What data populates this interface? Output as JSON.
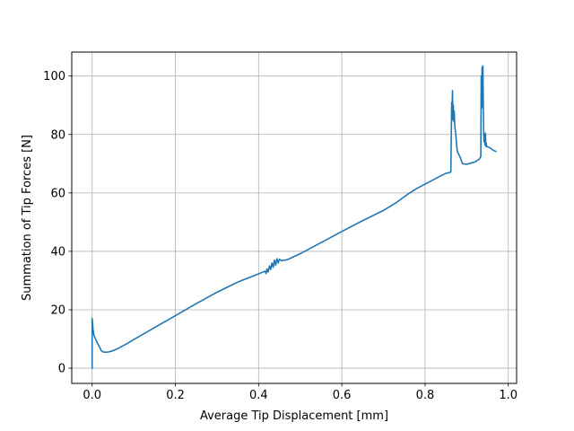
{
  "chart_data": {
    "type": "line",
    "title": "",
    "xlabel": "Average Tip Displacement [mm]",
    "ylabel": "Summation of Tip Forces [N]",
    "xlim": [
      -0.049,
      1.02
    ],
    "ylim": [
      -5.2,
      108.2
    ],
    "xticks": [
      0.0,
      0.2,
      0.4,
      0.6,
      0.8,
      1.0
    ],
    "xtick_labels": [
      "0.0",
      "0.2",
      "0.4",
      "0.6",
      "0.8",
      "1.0"
    ],
    "yticks": [
      0,
      20,
      40,
      60,
      80,
      100
    ],
    "ytick_labels": [
      "0",
      "20",
      "40",
      "60",
      "80",
      "100"
    ],
    "grid": true,
    "legend": null,
    "series_color": "#1f77b4",
    "series": [
      {
        "x": [
          0.0,
          0.0,
          0.001,
          0.002,
          0.004,
          0.008,
          0.012,
          0.018,
          0.022,
          0.026,
          0.03,
          0.035,
          0.04,
          0.05,
          0.06,
          0.08,
          0.1,
          0.15,
          0.2,
          0.25,
          0.3,
          0.35,
          0.4,
          0.415,
          0.418,
          0.42,
          0.423,
          0.426,
          0.429,
          0.432,
          0.435,
          0.438,
          0.441,
          0.444,
          0.447,
          0.45,
          0.455,
          0.46,
          0.47,
          0.5,
          0.55,
          0.6,
          0.65,
          0.7,
          0.73,
          0.76,
          0.78,
          0.8,
          0.82,
          0.84,
          0.85,
          0.86,
          0.862,
          0.864,
          0.865,
          0.866,
          0.867,
          0.868,
          0.869,
          0.87,
          0.871,
          0.872,
          0.874,
          0.876,
          0.878,
          0.885,
          0.89,
          0.9,
          0.92,
          0.93,
          0.932,
          0.934,
          0.935,
          0.936,
          0.937,
          0.938,
          0.939,
          0.94,
          0.941,
          0.942,
          0.943,
          0.944,
          0.945,
          0.946,
          0.947,
          0.948,
          0.95,
          0.955,
          0.96,
          0.965,
          0.97
        ],
        "y": [
          0.0,
          17.0,
          15.5,
          13.5,
          11.5,
          10.0,
          8.8,
          7.2,
          6.0,
          5.6,
          5.5,
          5.5,
          5.6,
          6.0,
          6.6,
          8.1,
          9.8,
          13.9,
          18.0,
          22.1,
          26.0,
          29.5,
          32.3,
          33.2,
          32.4,
          34.0,
          32.9,
          35.0,
          33.8,
          36.0,
          34.5,
          37.0,
          35.2,
          37.5,
          36.0,
          37.3,
          36.8,
          36.9,
          37.2,
          39.2,
          43.0,
          46.8,
          50.5,
          54.0,
          56.6,
          59.7,
          61.5,
          63.0,
          64.5,
          66.0,
          66.7,
          67.0,
          67.2,
          91.0,
          88.0,
          95.0,
          85.0,
          90.0,
          84.5,
          88.0,
          84.5,
          82.0,
          80.0,
          76.0,
          74.0,
          72.0,
          70.0,
          69.8,
          70.6,
          71.5,
          72.0,
          72.5,
          100.0,
          89.0,
          103.0,
          89.5,
          103.5,
          90.0,
          80.0,
          77.5,
          80.0,
          76.5,
          80.5,
          76.0,
          77.0,
          75.8,
          75.8,
          75.5,
          75.0,
          74.5,
          74.2
        ]
      }
    ]
  }
}
